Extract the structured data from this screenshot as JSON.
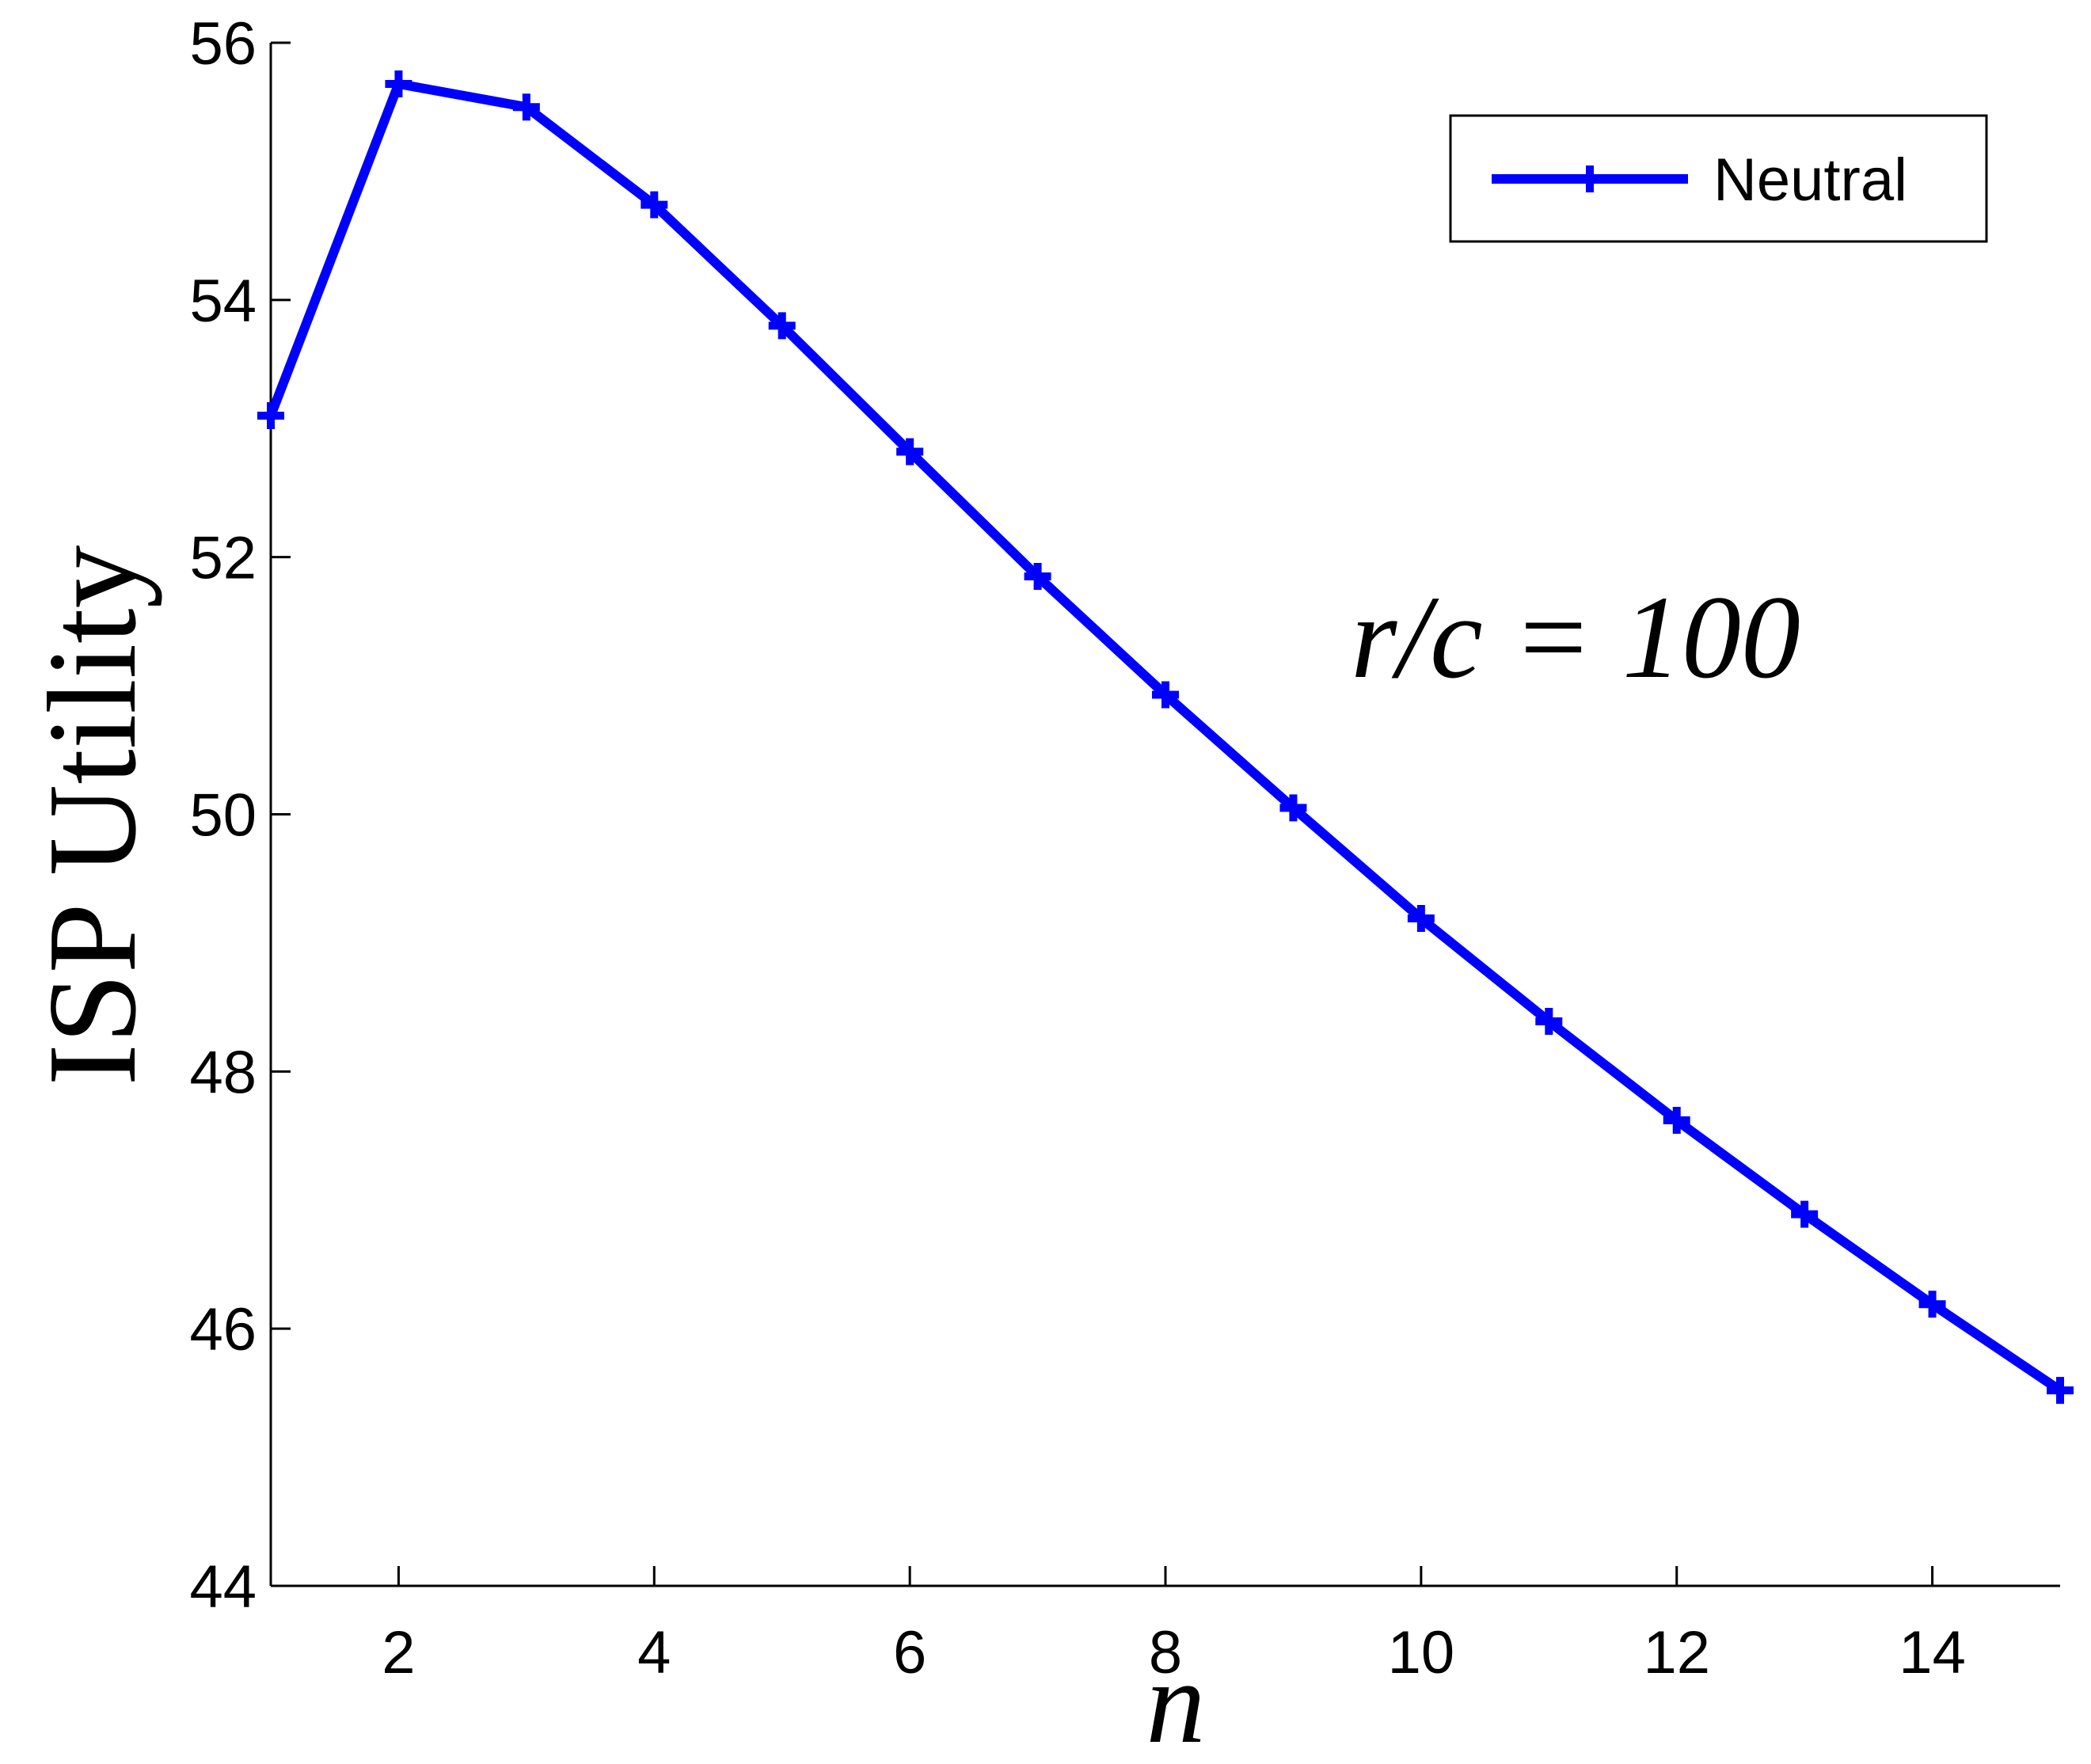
{
  "chart_data": {
    "type": "line",
    "x_label": "n",
    "y_label": "ISP Utility",
    "annotation": "r/c = 100",
    "x": [
      1,
      2,
      3,
      4,
      5,
      6,
      7,
      8,
      9,
      10,
      11,
      12,
      13,
      14,
      15
    ],
    "series": [
      {
        "name": "Neutral",
        "color": "#0000ff",
        "values": [
          53.1,
          55.68,
          55.5,
          54.74,
          53.8,
          52.82,
          51.85,
          50.93,
          50.05,
          49.19,
          48.39,
          47.62,
          46.89,
          46.19,
          45.52
        ]
      }
    ],
    "xlim": [
      1,
      15
    ],
    "xticks": [
      2,
      4,
      6,
      8,
      10,
      12,
      14
    ],
    "ylim": [
      44,
      56
    ],
    "yticks": [
      44,
      46,
      48,
      50,
      52,
      54,
      56
    ],
    "legend": "upper right"
  }
}
